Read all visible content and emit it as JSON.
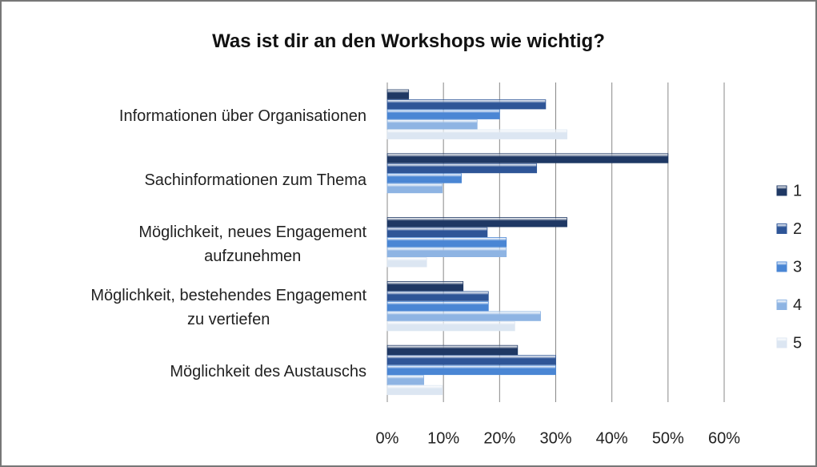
{
  "chart_data": {
    "type": "bar",
    "orientation": "horizontal",
    "title": "Was ist dir an den Workshops wie wichtig?",
    "categories": [
      "Informationen über Organisationen",
      "Sachinformationen zum Thema",
      "Möglichkeit, neues Engagement\naufzunehmen",
      "Möglichkeit, bestehendes Engagement\nzu vertiefen",
      "Möglichkeit des Austauschs"
    ],
    "series": [
      {
        "name": "1",
        "color": "#1f3864",
        "values": [
          3.8,
          50,
          32,
          13.5,
          23.2
        ]
      },
      {
        "name": "2",
        "color": "#2e5597",
        "values": [
          28.2,
          26.6,
          17.8,
          18,
          30
        ]
      },
      {
        "name": "3",
        "color": "#4a86d4",
        "values": [
          20,
          13.2,
          21.2,
          18,
          30
        ]
      },
      {
        "name": "4",
        "color": "#8eb4e3",
        "values": [
          16,
          9.8,
          21.2,
          27.3,
          6.5
        ]
      },
      {
        "name": "5",
        "color": "#dce6f2",
        "values": [
          32,
          0,
          7,
          22.7,
          9.8
        ]
      }
    ],
    "xlim": [
      0,
      60
    ],
    "xticks": [
      {
        "value": 0,
        "label": "0%"
      },
      {
        "value": 10,
        "label": "10%"
      },
      {
        "value": 20,
        "label": "20%"
      },
      {
        "value": 30,
        "label": "30%"
      },
      {
        "value": 40,
        "label": "40%"
      },
      {
        "value": 50,
        "label": "50%"
      },
      {
        "value": 60,
        "label": "60%"
      }
    ],
    "grid": true,
    "legend": "right"
  }
}
